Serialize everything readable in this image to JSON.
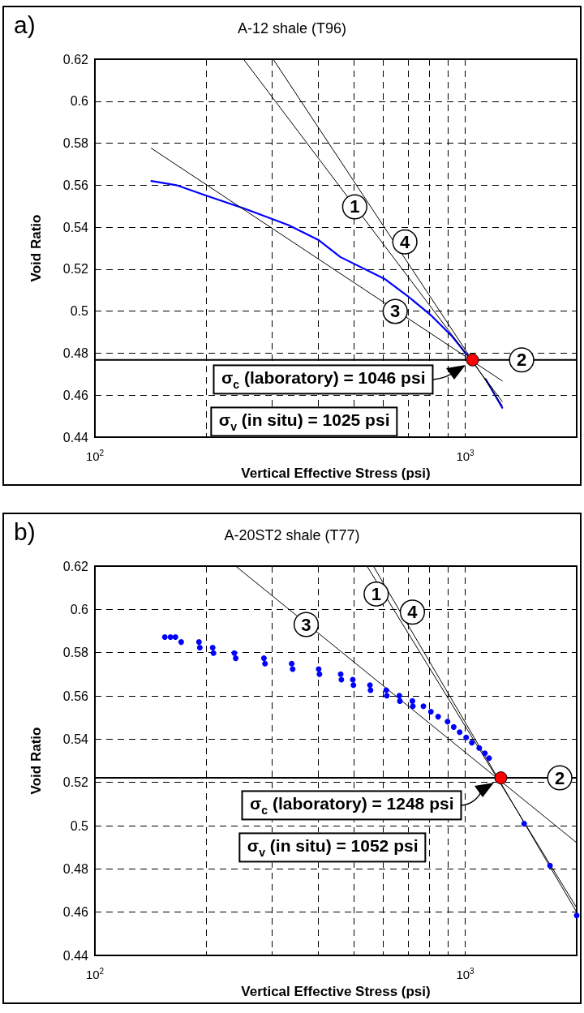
{
  "chart_data": [
    {
      "type": "line",
      "title": "A-12 shale (T96)",
      "xlabel": "Vertical Effective Stress (psi)",
      "ylabel": "Void Ratio",
      "log": "x",
      "grid": true,
      "marker": "none",
      "xlim": [
        100,
        2000
      ],
      "xticks": [
        {
          "value": 100,
          "label": "10$^{2}$"
        },
        {
          "value": 200,
          "label": null
        },
        {
          "value": 300,
          "label": null
        },
        {
          "value": 400,
          "label": null
        },
        {
          "value": 500,
          "label": null
        },
        {
          "value": 600,
          "label": null
        },
        {
          "value": 700,
          "label": null
        },
        {
          "value": 800,
          "label": null
        },
        {
          "value": 900,
          "label": null
        },
        {
          "value": 1000,
          "label": "10$^{3}$"
        }
      ],
      "ylim": [
        0.44,
        0.62
      ],
      "yticks": [
        0.44,
        0.46,
        0.48,
        0.5,
        0.52,
        0.54,
        0.56,
        0.58,
        0.6,
        0.62
      ],
      "series": [
        {
          "color": "#0000ff",
          "x": [
            142,
            166,
            200,
            252,
            333,
            401,
            460,
            608,
            698,
            803,
            922,
            1012,
            1047,
            1135,
            1259
          ],
          "values": [
            0.562,
            0.56,
            0.555,
            0.549,
            0.541,
            0.534,
            0.5258,
            0.5152,
            0.5073,
            0.4985,
            0.488,
            0.4791,
            null,
            0.4677,
            0.454
          ]
        },
        {
          "color": "#000000",
          "x": [
            252,
            1259
          ],
          "values": [
            0.62,
            0.457
          ]
        },
        {
          "color": "#000000",
          "x": [
            303,
            1259
          ],
          "values": [
            0.62,
            0.455
          ]
        },
        {
          "color": "#000000",
          "x": [
            142,
            1259
          ],
          "values": [
            0.5776,
            0.4668
          ]
        },
        {
          "type": "scatter",
          "marker": "circle",
          "color": "#ff0000",
          "x": [
            1046
          ],
          "values": [
            0.4768
          ]
        }
      ],
      "ref_lines": [
        {
          "axis": "y",
          "value": 0.4768
        }
      ],
      "annotations": [
        "a)",
        {
          "text": "2",
          "x": 1420,
          "y": 0.4768
        },
        {
          "text": "1",
          "x": 503,
          "y": 0.5497
        },
        {
          "text": "4",
          "x": 687,
          "y": 0.533
        },
        {
          "text": "3",
          "x": 647,
          "y": 0.4999
        },
        "σ$_{c}$ (laboratory) = 1046 psi",
        "σ$_{v}$ (in situ) = 1025 psi"
      ]
    },
    {
      "type": "line",
      "title": "A-20ST2 shale (T77)",
      "xlabel": "Vertical Effective Stress (psi)",
      "ylabel": "Void Ratio",
      "log": "x",
      "grid": true,
      "marker": "none",
      "xlim": [
        100,
        2000
      ],
      "xticks": [
        {
          "value": 100,
          "label": "10$^{2}$"
        },
        {
          "value": 200,
          "label": null
        },
        {
          "value": 300,
          "label": null
        },
        {
          "value": 400,
          "label": null
        },
        {
          "value": 500,
          "label": null
        },
        {
          "value": 600,
          "label": null
        },
        {
          "value": 700,
          "label": null
        },
        {
          "value": 800,
          "label": null
        },
        {
          "value": 900,
          "label": null
        },
        {
          "value": 1000,
          "label": "10$^{3}$"
        }
      ],
      "ylim": [
        0.44,
        0.62
      ],
      "yticks": [
        0.44,
        0.46,
        0.48,
        0.5,
        0.52,
        0.54,
        0.56,
        0.58,
        0.6,
        0.62
      ],
      "series": [
        {
          "type": "scatter",
          "marker": "circle",
          "color": "#0000ff",
          "x": [
            154.5,
            160,
            165,
            171,
            191,
            192,
            208,
            209,
            238,
            240,
            286,
            288,
            340,
            342,
            402,
            404,
            461,
            463,
            497,
            499,
            553,
            555,
            612,
            614,
            664,
            666,
            720,
            722,
            771,
            808,
            845,
            896,
            931,
            966,
            1006,
            1042,
            1091,
            1130,
            1160,
            1443,
            1694,
            2000
          ],
          "values": [
            0.5872,
            0.5872,
            0.5872,
            0.5849,
            0.5849,
            0.5823,
            0.5823,
            0.5798,
            0.5798,
            0.5774,
            0.5774,
            0.5749,
            0.5749,
            0.5724,
            0.5724,
            0.57,
            0.57,
            0.5675,
            0.5675,
            0.565,
            0.565,
            0.5626,
            0.5626,
            0.5601,
            0.5601,
            0.5576,
            0.5576,
            0.5552,
            0.5552,
            0.5527,
            0.5504,
            0.5481,
            0.5456,
            0.5432,
            0.5408,
            0.5384,
            0.5359,
            0.5335,
            0.5312,
            0.5009,
            0.4815,
            0.4585
          ]
        },
        {
          "color": "#000000",
          "x": [
            543,
            2000
          ],
          "values": [
            0.62,
            0.462
          ]
        },
        {
          "color": "#000000",
          "x": [
            565,
            2000
          ],
          "values": [
            0.62,
            0.46
          ]
        },
        {
          "color": "#000000",
          "x": [
            240,
            2000
          ],
          "values": [
            0.62,
            0.4921
          ]
        },
        {
          "type": "scatter",
          "marker": "circle",
          "color": "#ff0000",
          "x": [
            1248
          ],
          "values": [
            0.5221
          ]
        }
      ],
      "ref_lines": [
        {
          "axis": "y",
          "value": 0.5221
        }
      ],
      "annotations": [
        "b)",
        {
          "text": "2",
          "x": 1800,
          "y": 0.5221
        },
        {
          "text": "1",
          "x": 575,
          "y": 0.6071
        },
        {
          "text": "4",
          "x": 720,
          "y": 0.5987
        },
        {
          "text": "3",
          "x": 372,
          "y": 0.593
        },
        "σ$_{c}$ (laboratory) = 1248 psi",
        "σ$_{v}$ (in situ) = 1052 psi"
      ]
    }
  ]
}
